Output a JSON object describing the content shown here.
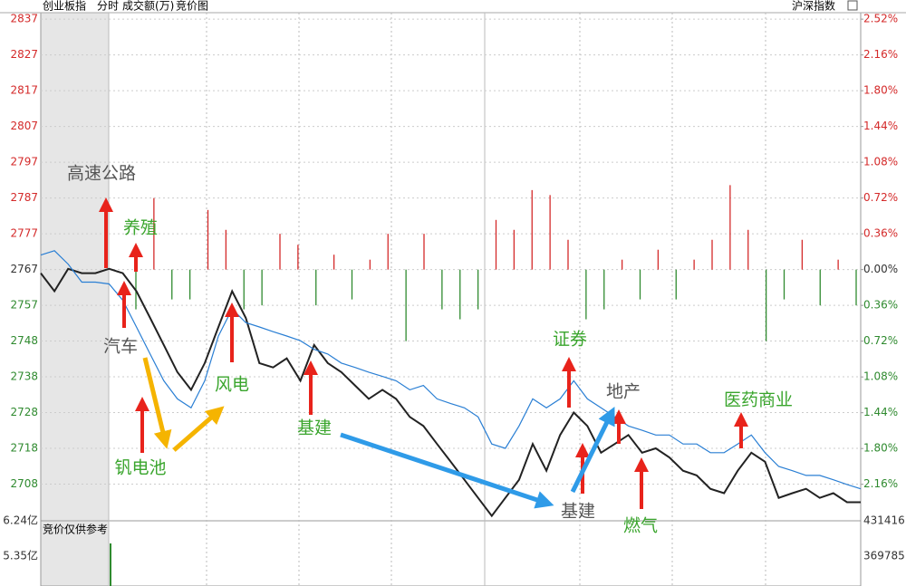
{
  "chart_data": {
    "type": "line",
    "header": {
      "index": "创业板指",
      "mode": "分时",
      "volume_label": "成交额(万)",
      "auction": "竞价图",
      "reference": "沪深指数"
    },
    "ylim": [
      2698.6,
      2838.5
    ],
    "yticks": [
      {
        "value": 2836.7,
        "label": "2837"
      },
      {
        "value": 2826.8,
        "label": "2827"
      },
      {
        "value": 2816.9,
        "label": "2817"
      },
      {
        "value": 2807.0,
        "label": "2807"
      },
      {
        "value": 2797.1,
        "label": "2797"
      },
      {
        "value": 2787.2,
        "label": "2787"
      },
      {
        "value": 2777.3,
        "label": "2777"
      },
      {
        "value": 2767.4,
        "label": "2767"
      },
      {
        "value": 2757.5,
        "label": "2757"
      },
      {
        "value": 2747.6,
        "label": "2748"
      },
      {
        "value": 2737.7,
        "label": "2738"
      },
      {
        "value": 2727.8,
        "label": "2728"
      },
      {
        "value": 2717.9,
        "label": "2718"
      },
      {
        "value": 2708.0,
        "label": "2708"
      }
    ],
    "y2lim": [
      -2.5,
      2.585
    ],
    "y2ticks": [
      {
        "value": 2.52,
        "label": "2.52%"
      },
      {
        "value": 2.16,
        "label": "2.16%"
      },
      {
        "value": 1.8,
        "label": "1.80%"
      },
      {
        "value": 1.44,
        "label": "1.44%"
      },
      {
        "value": 1.08,
        "label": "1.08%"
      },
      {
        "value": 0.72,
        "label": "0.72%"
      },
      {
        "value": 0.36,
        "label": "0.36%"
      },
      {
        "value": 0,
        "label": "0.00%"
      },
      {
        "value": -0.36,
        "label": "0.36%"
      },
      {
        "value": -0.72,
        "label": "0.72%"
      },
      {
        "value": -1.08,
        "label": "1.08%"
      },
      {
        "value": -1.44,
        "label": "1.44%"
      },
      {
        "value": -1.8,
        "label": "1.80%"
      },
      {
        "value": -2.16,
        "label": "2.16%"
      }
    ],
    "up_color": "#d42a2a",
    "down_color": "#2f8a2f",
    "series": [
      {
        "color": "#222222",
        "values": [
          2766.4,
          2761.4,
          2767.6,
          2766.4,
          2766.4,
          2767.6,
          2766.4,
          2761.4,
          2754.0,
          2746.5,
          2739.0,
          2734.1,
          2741.5,
          2751.5,
          2761.4,
          2754.0,
          2741.5,
          2740.3,
          2742.8,
          2736.6,
          2746.5,
          2741.5,
          2739.0,
          2735.3,
          2731.6,
          2734.1,
          2731.6,
          2726.6,
          2724.1,
          2719.1,
          2714.2,
          2709.2,
          2704.2,
          2699.2,
          2704.2,
          2709.2,
          2719.1,
          2711.7,
          2721.6,
          2727.8,
          2724.1,
          2716.7,
          2719.1,
          2721.6,
          2716.7,
          2717.9,
          2715.4,
          2711.7,
          2710.4,
          2706.7,
          2705.5,
          2711.7,
          2716.7,
          2714.2,
          2704.2,
          2705.5,
          2706.7,
          2704.2,
          2705.5,
          2703.0,
          2703.0
        ]
      },
      {
        "color": "#2a7fd4",
        "values": [
          2771.4,
          2772.6,
          2768.9,
          2763.9,
          2763.9,
          2763.4,
          2758.9,
          2751.5,
          2744.0,
          2736.6,
          2731.6,
          2729.1,
          2736.6,
          2749.0,
          2756.5,
          2752.7,
          2751.5,
          2750.2,
          2749.0,
          2747.7,
          2745.3,
          2744.0,
          2741.5,
          2740.3,
          2739.0,
          2737.8,
          2736.6,
          2734.1,
          2735.3,
          2731.6,
          2730.3,
          2729.1,
          2726.6,
          2719.1,
          2717.9,
          2724.1,
          2731.6,
          2729.1,
          2731.6,
          2736.6,
          2731.6,
          2729.1,
          2726.6,
          2724.1,
          2722.9,
          2721.6,
          2721.6,
          2719.1,
          2719.1,
          2716.7,
          2716.7,
          2719.1,
          2721.6,
          2716.7,
          2712.9,
          2711.7,
          2710.4,
          2710.4,
          2709.2,
          2707.9,
          2706.7
        ]
      }
    ],
    "bars": [
      -0.4,
      0.72,
      -0.3,
      -0.3,
      0.6,
      0.4,
      -0.4,
      -0.36,
      0.36,
      0.25,
      -0.36,
      0.15,
      -0.3,
      0.1,
      0.36,
      -0.72,
      0.36,
      -0.4,
      -0.5,
      -0.4,
      0.5,
      0.4,
      0.8,
      0.75,
      0.3,
      -0.5,
      -0.4,
      0.1,
      -0.3,
      0.2,
      -0.3,
      0.1,
      0.3,
      0.85,
      0.4,
      -0.72,
      -0.3,
      0.3,
      -0.36,
      0.1,
      -0.36
    ],
    "lower_panel": {
      "title": "竞价仅供参考",
      "yticks": [
        {
          "value": 6.24,
          "label": "6.24亿"
        },
        {
          "value": 5.35,
          "label": "5.35亿"
        }
      ],
      "y2ticks": [
        431416,
        369785
      ]
    },
    "annotations": [
      "高速公路",
      "养殖",
      "汽车",
      "钒电池",
      "风电",
      "基建",
      "基建",
      "证券",
      "地产",
      "燃气",
      "医药商业"
    ]
  }
}
